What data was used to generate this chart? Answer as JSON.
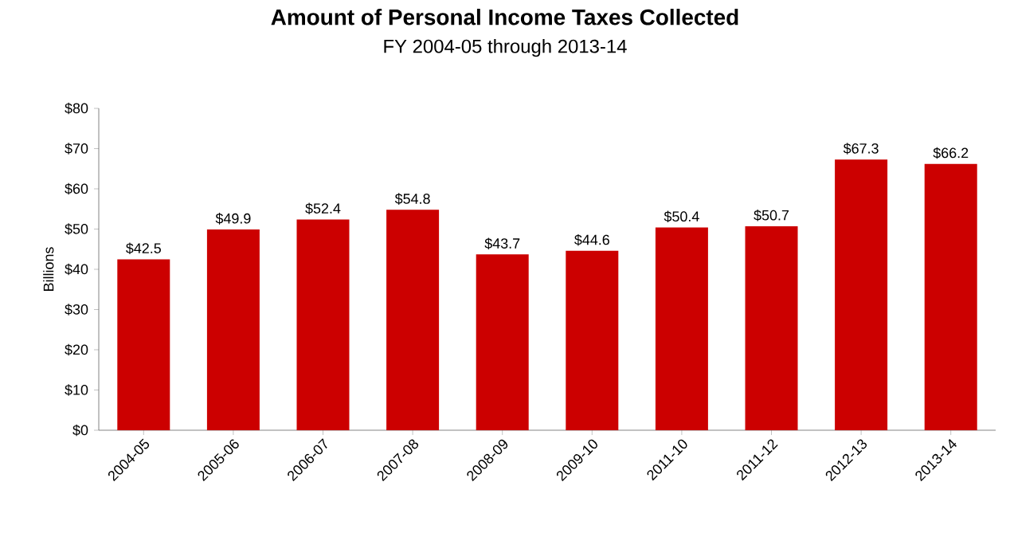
{
  "chart_data": {
    "type": "bar",
    "title": "Amount of Personal Income Taxes Collected",
    "subtitle": "FY 2004-05 through 2013-14",
    "ylabel": "Billions",
    "categories": [
      "2004-05",
      "2005-06",
      "2006-07",
      "2007-08",
      "2008-09",
      "2009-10",
      "2011-10",
      "2011-12",
      "2012-13",
      "2013-14"
    ],
    "values": [
      42.5,
      49.9,
      52.4,
      54.8,
      43.7,
      44.6,
      50.4,
      50.7,
      67.3,
      66.2
    ],
    "value_labels": [
      "$42.5",
      "$49.9",
      "$52.4",
      "$54.8",
      "$43.7",
      "$44.6",
      "$50.4",
      "$50.7",
      "$67.3",
      "$66.2"
    ],
    "color": "#cc0000",
    "ylim": [
      0,
      80
    ],
    "yticks": [
      {
        "value": 0,
        "label": "$0"
      },
      {
        "value": 10,
        "label": "$10"
      },
      {
        "value": 20,
        "label": "$20"
      },
      {
        "value": 30,
        "label": "$30"
      },
      {
        "value": 40,
        "label": "$40"
      },
      {
        "value": 50,
        "label": "$50"
      },
      {
        "value": 60,
        "label": "$60"
      },
      {
        "value": 70,
        "label": "$70"
      },
      {
        "value": 80,
        "label": "$80"
      }
    ],
    "grid": false
  }
}
